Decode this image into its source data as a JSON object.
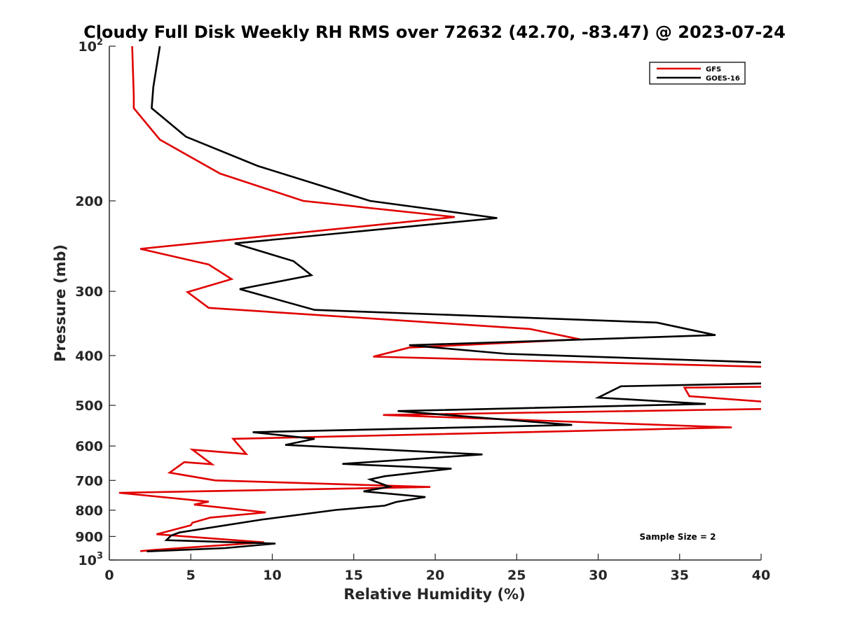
{
  "chart_data": {
    "type": "line",
    "title": "Cloudy Full Disk Weekly RH RMS over 72632 (42.70, -83.47) @ 2023-07-24",
    "xlabel": "Relative Humidity (%)",
    "ylabel": "Pressure (mb)",
    "xlim": [
      0,
      40
    ],
    "ylim": [
      100,
      1000
    ],
    "yscale": "log",
    "y_reversed": true,
    "grid": false,
    "legend_position": "top-right",
    "x_ticks": [
      "0",
      "5",
      "10",
      "15",
      "20",
      "25",
      "30",
      "35",
      "40"
    ],
    "y_ticks": [
      {
        "value": 100,
        "base": "10",
        "exp": "2"
      },
      {
        "value": 200,
        "label": "200"
      },
      {
        "value": 300,
        "label": "300"
      },
      {
        "value": 400,
        "label": "400"
      },
      {
        "value": 500,
        "label": "500"
      },
      {
        "value": 600,
        "label": "600"
      },
      {
        "value": 700,
        "label": "700"
      },
      {
        "value": 800,
        "label": "800"
      },
      {
        "value": 900,
        "label": "900"
      },
      {
        "value": 1000,
        "base": "10",
        "exp": "3"
      }
    ],
    "annotation": "Sample Size = 2",
    "series": [
      {
        "name": "GFS",
        "color": "#e00000",
        "points": [
          [
            1.4,
            100
          ],
          [
            1.5,
            125
          ],
          [
            1.5,
            132
          ],
          [
            3.1,
            152
          ],
          [
            6.8,
            177
          ],
          [
            11.9,
            200
          ],
          [
            21.2,
            215
          ],
          [
            1.9,
            248
          ],
          [
            6.1,
            266
          ],
          [
            7.5,
            284
          ],
          [
            4.8,
            301
          ],
          [
            6.1,
            323
          ],
          [
            25.8,
            355
          ],
          [
            28.9,
            372
          ],
          [
            18.4,
            386
          ],
          [
            16.2,
            402
          ],
          [
            40.5,
            421
          ],
          [
            40.5,
            460
          ],
          [
            35.3,
            462
          ],
          [
            35.6,
            480
          ],
          [
            40.2,
            492
          ],
          [
            40.5,
            492
          ],
          [
            40.5,
            508
          ],
          [
            16.8,
            522
          ],
          [
            38.2,
            552
          ],
          [
            7.6,
            581
          ],
          [
            8.4,
            622
          ],
          [
            5.1,
            610
          ],
          [
            6.3,
            651
          ],
          [
            4.6,
            645
          ],
          [
            3.7,
            676
          ],
          [
            6.5,
            700
          ],
          [
            19.7,
            721
          ],
          [
            0.6,
            740
          ],
          [
            6.1,
            770
          ],
          [
            5.2,
            780
          ],
          [
            9.6,
            808
          ],
          [
            6.2,
            827
          ],
          [
            5.1,
            846
          ],
          [
            5.0,
            856
          ],
          [
            2.9,
            891
          ],
          [
            9.5,
            924
          ],
          [
            2.9,
            955
          ],
          [
            1.9,
            961
          ]
        ]
      },
      {
        "name": "GOES-16",
        "color": "#000000",
        "points": [
          [
            3.1,
            100
          ],
          [
            2.7,
            120
          ],
          [
            2.6,
            132
          ],
          [
            4.7,
            150
          ],
          [
            9.1,
            171
          ],
          [
            16.0,
            200
          ],
          [
            23.8,
            216
          ],
          [
            7.7,
            242
          ],
          [
            11.3,
            262
          ],
          [
            12.4,
            279
          ],
          [
            8.0,
            297
          ],
          [
            12.6,
            326
          ],
          [
            33.6,
            345
          ],
          [
            37.2,
            365
          ],
          [
            18.4,
            382
          ],
          [
            24.4,
            397
          ],
          [
            40.5,
            413
          ],
          [
            40.5,
            453
          ],
          [
            31.4,
            459
          ],
          [
            30.0,
            483
          ],
          [
            36.6,
            497
          ],
          [
            17.7,
            513
          ],
          [
            28.4,
            546
          ],
          [
            8.8,
            564
          ],
          [
            12.6,
            581
          ],
          [
            10.8,
            597
          ],
          [
            22.9,
            623
          ],
          [
            14.3,
            650
          ],
          [
            21.0,
            664
          ],
          [
            16.9,
            687
          ],
          [
            16.0,
            697
          ],
          [
            16.3,
            703
          ],
          [
            17.2,
            720
          ],
          [
            15.6,
            735
          ],
          [
            19.4,
            754
          ],
          [
            17.6,
            771
          ],
          [
            16.9,
            784
          ],
          [
            13.9,
            799
          ],
          [
            9.4,
            834
          ],
          [
            4.3,
            884
          ],
          [
            3.8,
            896
          ],
          [
            3.5,
            915
          ],
          [
            10.2,
            929
          ],
          [
            7.1,
            948
          ],
          [
            2.3,
            962
          ]
        ]
      }
    ]
  }
}
